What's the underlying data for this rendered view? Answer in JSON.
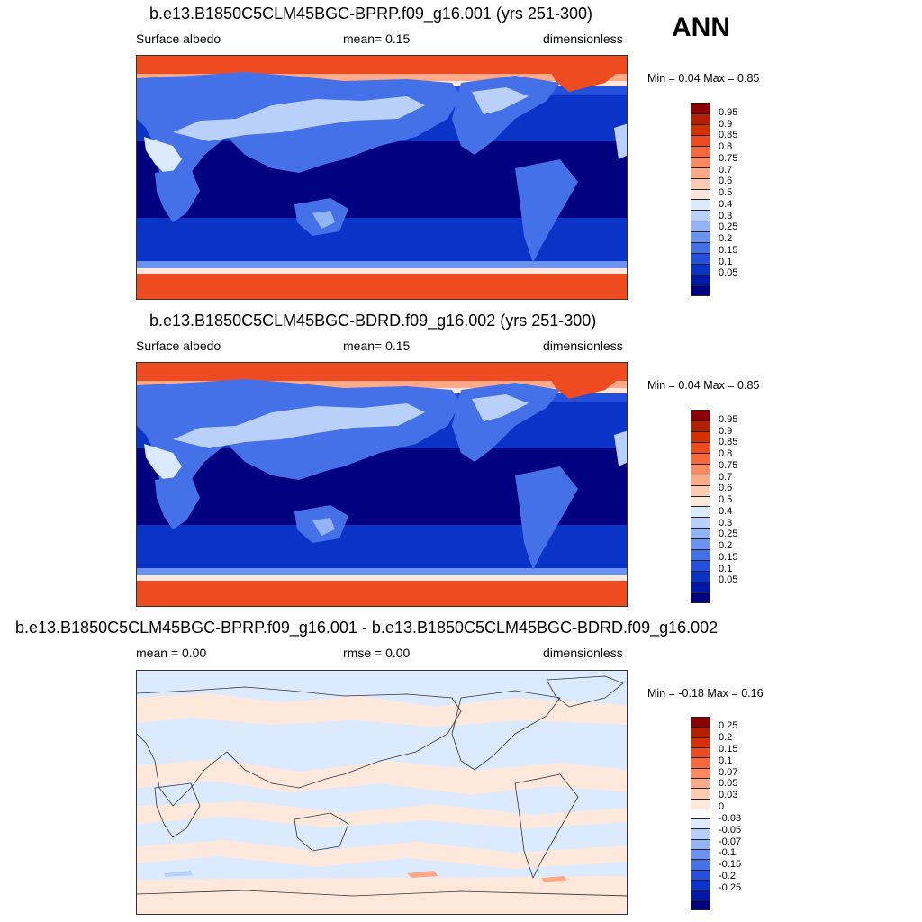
{
  "season_label": "ANN",
  "panels": [
    {
      "title": "b.e13.B1850C5CLM45BGC-BPRP.f09_g16.001 (yrs 251-300)",
      "left_label": "Surface albedo",
      "center_label": "mean=   0.15",
      "right_label": "dimensionless",
      "minmax": "Min =   0.04 Max =   0.85",
      "colorbar": {
        "colors": [
          "#8b0000",
          "#b22000",
          "#d63000",
          "#ee4b20",
          "#f7683c",
          "#fa8a5f",
          "#fcaa88",
          "#fdcbb0",
          "#fee8dc",
          "#dceaff",
          "#b8d0fa",
          "#92b4f5",
          "#6b93ef",
          "#4571e8",
          "#2550dd",
          "#0a34c7",
          "#0018a5",
          "#000080"
        ],
        "labels": [
          "0.95",
          "0.9",
          "0.85",
          "0.8",
          "0.75",
          "0.7",
          "0.6",
          "0.5",
          "0.4",
          "0.3",
          "0.25",
          "0.2",
          "0.15",
          "0.1",
          "0.05"
        ]
      }
    },
    {
      "title": "b.e13.B1850C5CLM45BGC-BDRD.f09_g16.002 (yrs 251-300)",
      "left_label": "Surface albedo",
      "center_label": "mean=   0.15",
      "right_label": "dimensionless",
      "minmax": "Min =   0.04 Max =   0.85",
      "colorbar": {
        "colors": [
          "#8b0000",
          "#b22000",
          "#d63000",
          "#ee4b20",
          "#f7683c",
          "#fa8a5f",
          "#fcaa88",
          "#fdcbb0",
          "#fee8dc",
          "#dceaff",
          "#b8d0fa",
          "#92b4f5",
          "#6b93ef",
          "#4571e8",
          "#2550dd",
          "#0a34c7",
          "#0018a5",
          "#000080"
        ],
        "labels": [
          "0.95",
          "0.9",
          "0.85",
          "0.8",
          "0.75",
          "0.7",
          "0.6",
          "0.5",
          "0.4",
          "0.3",
          "0.25",
          "0.2",
          "0.15",
          "0.1",
          "0.05"
        ]
      }
    },
    {
      "title": "b.e13.B1850C5CLM45BGC-BPRP.f09_g16.001 - b.e13.B1850C5CLM45BGC-BDRD.f09_g16.002",
      "left_label": "mean =   0.00",
      "center_label": "rmse =   0.00",
      "right_label": "dimensionless",
      "minmax": "Min =  -0.18 Max =   0.16",
      "colorbar": {
        "colors": [
          "#8b0000",
          "#b22000",
          "#d63000",
          "#ee4b20",
          "#f7683c",
          "#fa8a5f",
          "#fcaa88",
          "#fdcbb0",
          "#fee8dc",
          "#ffffff",
          "#dceaff",
          "#b8d0fa",
          "#92b4f5",
          "#6b93ef",
          "#4571e8",
          "#2550dd",
          "#0a34c7",
          "#0018a5",
          "#000080"
        ],
        "labels": [
          "0.25",
          "0.2",
          "0.15",
          "0.1",
          "0.07",
          "0.05",
          "0.03",
          "0",
          "-0.03",
          "-0.05",
          "-0.07",
          "-0.1",
          "-0.15",
          "-0.2",
          "-0.25"
        ]
      }
    }
  ],
  "chart_data": [
    {
      "type": "heatmap",
      "title": "b.e13.B1850C5CLM45BGC-BPRP.f09_g16.001 (yrs 251-300)",
      "variable": "Surface albedo",
      "units": "dimensionless",
      "mean": 0.15,
      "min": 0.04,
      "max": 0.85,
      "levels": [
        0.05,
        0.1,
        0.15,
        0.2,
        0.25,
        0.3,
        0.4,
        0.5,
        0.6,
        0.7,
        0.75,
        0.8,
        0.85,
        0.9,
        0.95
      ]
    },
    {
      "type": "heatmap",
      "title": "b.e13.B1850C5CLM45BGC-BDRD.f09_g16.002 (yrs 251-300)",
      "variable": "Surface albedo",
      "units": "dimensionless",
      "mean": 0.15,
      "min": 0.04,
      "max": 0.85,
      "levels": [
        0.05,
        0.1,
        0.15,
        0.2,
        0.25,
        0.3,
        0.4,
        0.5,
        0.6,
        0.7,
        0.75,
        0.8,
        0.85,
        0.9,
        0.95
      ]
    },
    {
      "type": "heatmap",
      "title": "b.e13.B1850C5CLM45BGC-BPRP.f09_g16.001 - b.e13.B1850C5CLM45BGC-BDRD.f09_g16.002",
      "units": "dimensionless",
      "mean": 0.0,
      "rmse": 0.0,
      "min": -0.18,
      "max": 0.16,
      "levels": [
        -0.25,
        -0.2,
        -0.15,
        -0.1,
        -0.07,
        -0.05,
        -0.03,
        0,
        0.03,
        0.05,
        0.07,
        0.1,
        0.15,
        0.2,
        0.25
      ]
    }
  ]
}
